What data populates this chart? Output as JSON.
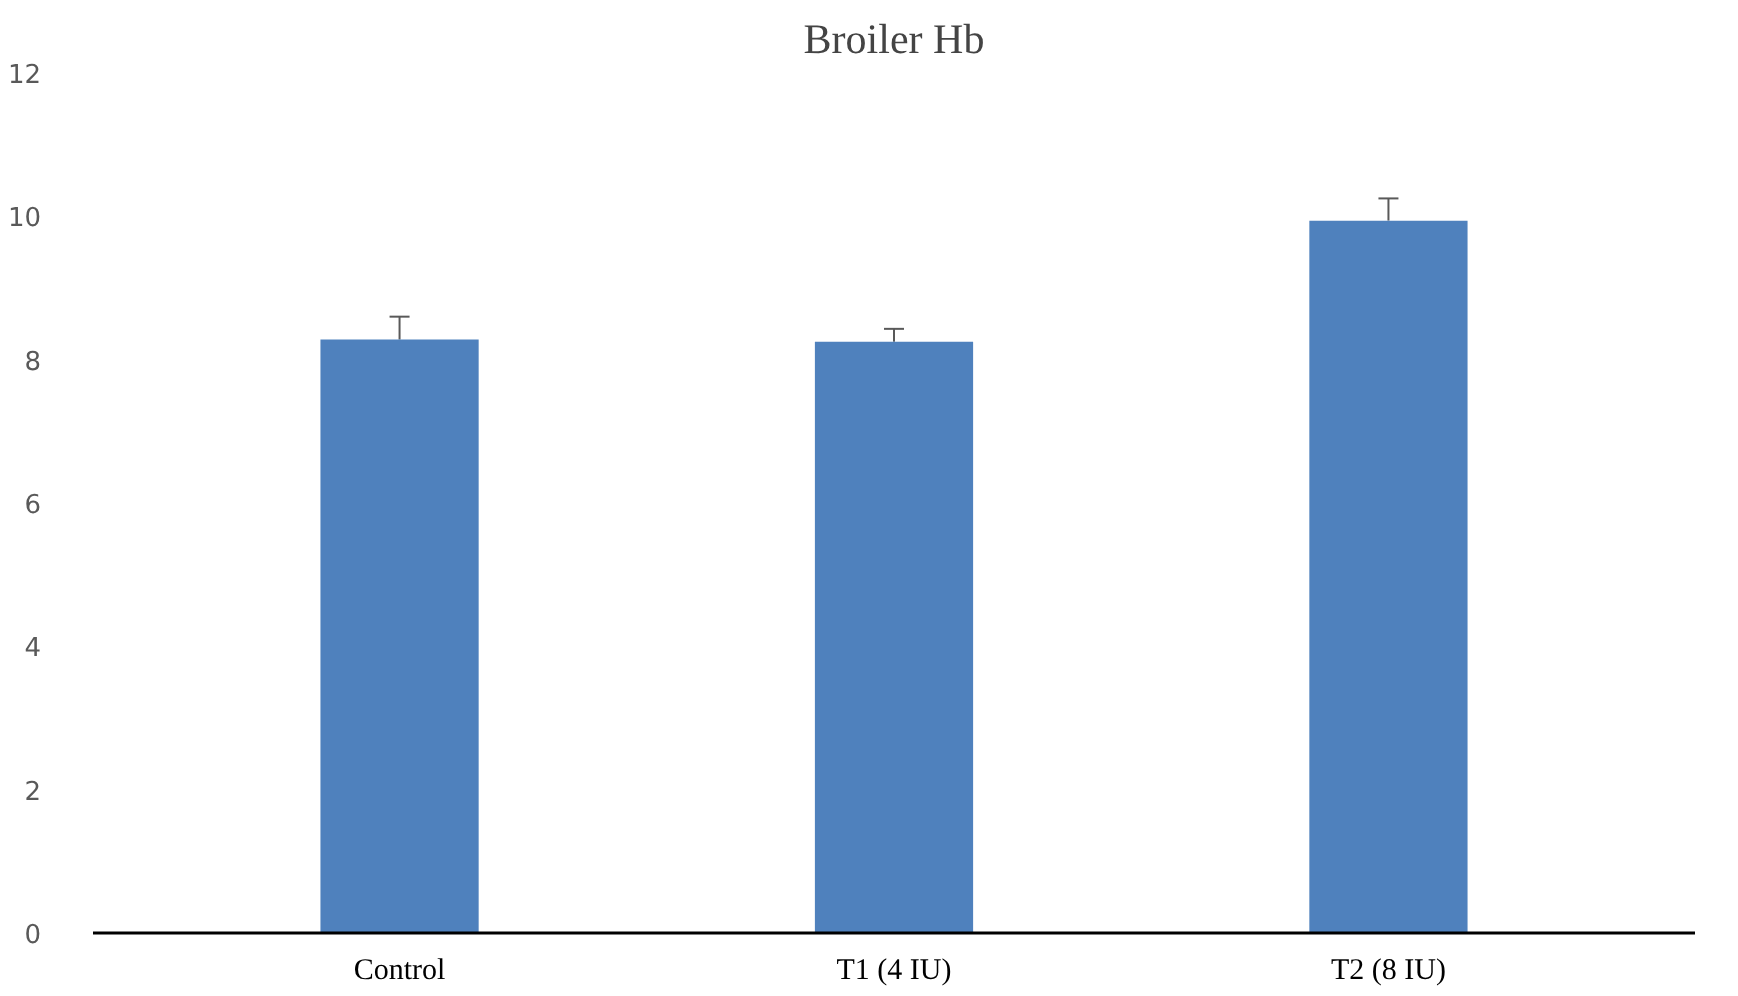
{
  "chart_data": {
    "type": "bar",
    "title": "Broiler Hb",
    "categories": [
      "Control",
      "T1 (4 IU)",
      "T2 (8 IU)"
    ],
    "values": [
      8.28,
      8.25,
      9.94
    ],
    "errors": [
      [
        8.28,
        8.6
      ],
      [
        8.25,
        8.43
      ],
      [
        9.94,
        10.25
      ]
    ],
    "color": "#4f81bd",
    "ylim": [
      0,
      12
    ],
    "yticks": [
      0,
      2,
      4,
      6,
      8,
      10,
      12
    ],
    "grid": false
  }
}
